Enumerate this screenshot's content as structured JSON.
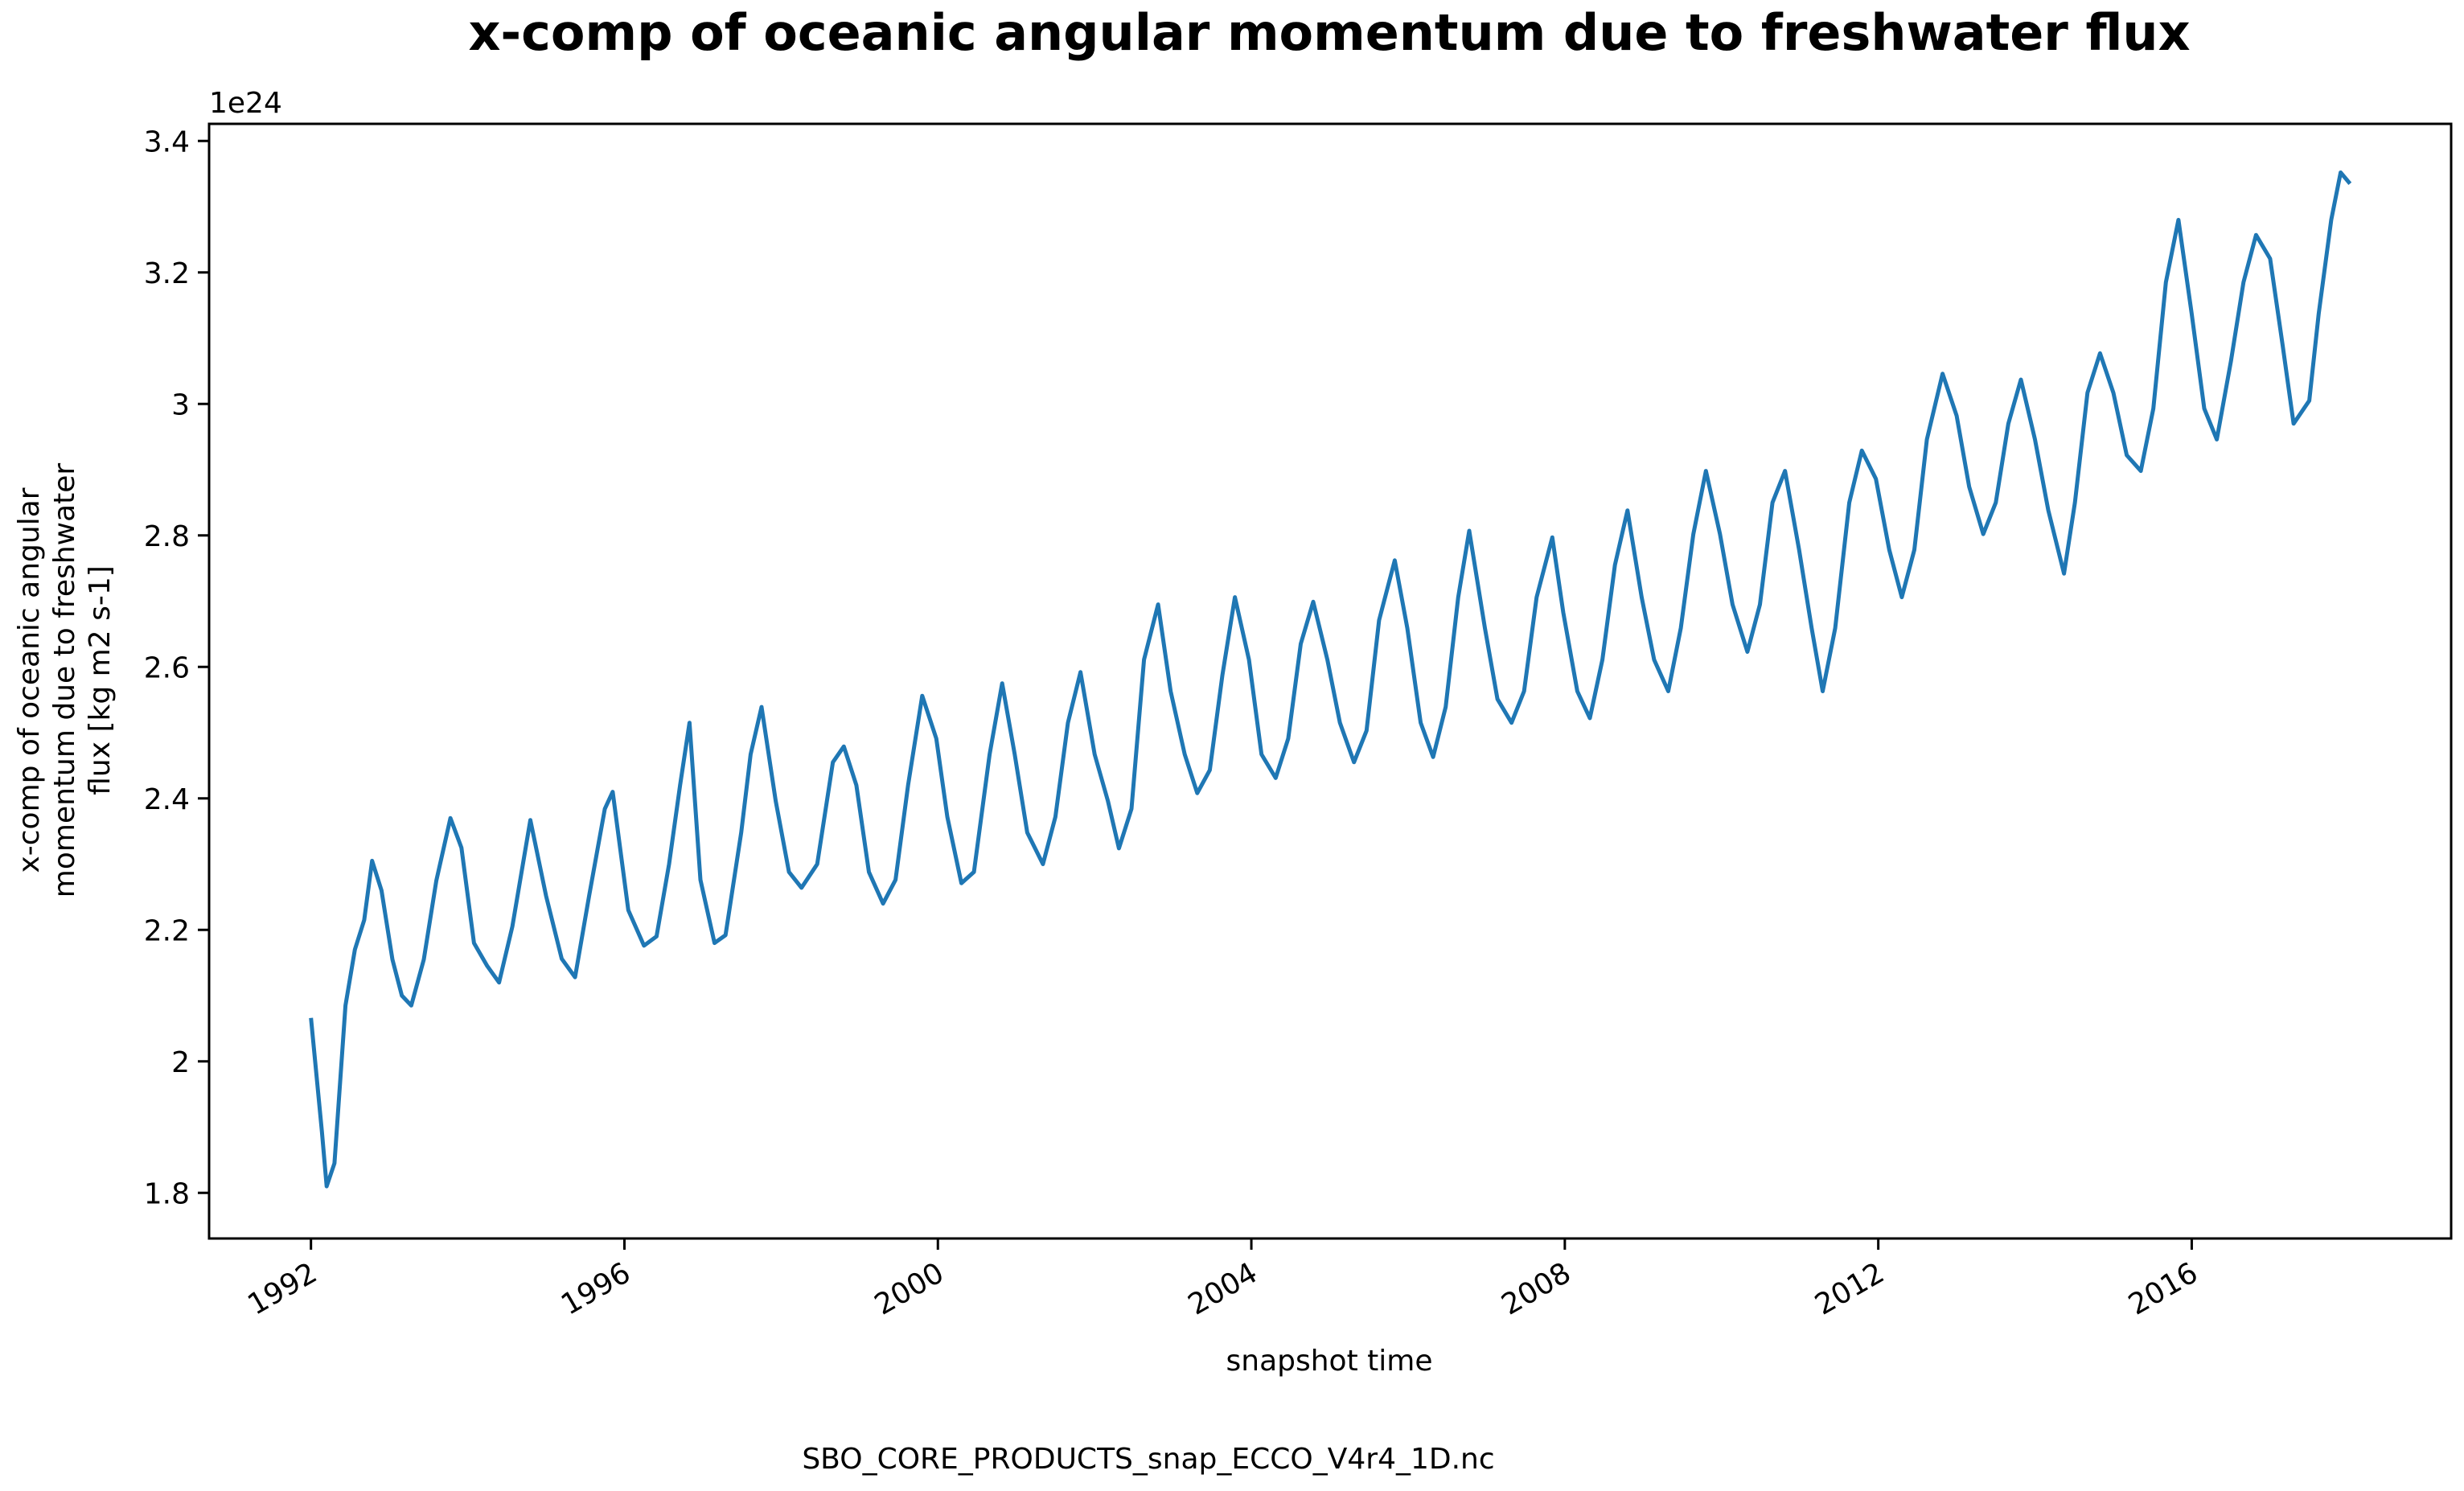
{
  "chart_data": {
    "type": "line",
    "title": "x-comp of oceanic angular momentum due to freshwater flux",
    "xlabel": "snapshot time",
    "ylabel": [
      "x-comp of oceanic angular",
      "momentum due to freshwater",
      "flux [kg m2 s-1]"
    ],
    "y_offset_label": "1e24",
    "footnote": "SBO_CORE_PRODUCTS_snap_ECCO_V4r4_1D.nc",
    "color": "#1f77b4",
    "x": [
      1992.0,
      1992.14,
      1992.2,
      1992.3,
      1992.44,
      1992.56,
      1992.68,
      1992.78,
      1992.9,
      1993.04,
      1993.16,
      1993.28,
      1993.44,
      1993.6,
      1993.78,
      1993.92,
      1994.08,
      1994.25,
      1994.4,
      1994.57,
      1994.8,
      1995.0,
      1995.2,
      1995.37,
      1995.55,
      1995.75,
      1995.85,
      1996.05,
      1996.25,
      1996.41,
      1996.57,
      1996.71,
      1996.83,
      1996.97,
      1997.15,
      1997.29,
      1997.49,
      1997.61,
      1997.75,
      1997.93,
      1998.1,
      1998.26,
      1998.46,
      1998.66,
      1998.8,
      1998.96,
      1999.12,
      1999.3,
      1999.46,
      1999.62,
      1999.8,
      1999.98,
      2000.12,
      2000.3,
      2000.46,
      2000.66,
      2000.82,
      2000.98,
      2001.14,
      2001.34,
      2001.5,
      2001.66,
      2001.82,
      2002.0,
      2002.17,
      2002.31,
      2002.47,
      2002.63,
      2002.81,
      2002.97,
      2003.15,
      2003.31,
      2003.47,
      2003.63,
      2003.79,
      2003.97,
      2004.13,
      2004.31,
      2004.47,
      2004.63,
      2004.79,
      2004.97,
      2005.13,
      2005.31,
      2005.47,
      2005.63,
      2005.83,
      2005.99,
      2006.16,
      2006.32,
      2006.48,
      2006.64,
      2006.78,
      2006.98,
      2007.14,
      2007.32,
      2007.48,
      2007.64,
      2007.84,
      2007.98,
      2008.16,
      2008.32,
      2008.48,
      2008.64,
      2008.8,
      2008.98,
      2009.14,
      2009.32,
      2009.48,
      2009.64,
      2009.8,
      2009.98,
      2010.14,
      2010.33,
      2010.49,
      2010.65,
      2010.81,
      2010.99,
      2011.15,
      2011.29,
      2011.45,
      2011.63,
      2011.79,
      2011.97,
      2012.14,
      2012.3,
      2012.46,
      2012.62,
      2012.82,
      2013.0,
      2013.16,
      2013.34,
      2013.5,
      2013.66,
      2013.82,
      2014.0,
      2014.17,
      2014.37,
      2014.51,
      2014.67,
      2014.83,
      2015.0,
      2015.17,
      2015.35,
      2015.51,
      2015.67,
      2015.83,
      2016.0,
      2016.16,
      2016.32,
      2016.5,
      2016.66,
      2016.82,
      2017.0,
      2017.16,
      2017.3,
      2017.5,
      2017.62,
      2017.78,
      2017.9,
      2018.02
    ],
    "values": [
      2.066,
      1.893,
      1.81,
      1.845,
      2.085,
      2.17,
      2.215,
      2.305,
      2.26,
      2.155,
      2.1,
      2.085,
      2.155,
      2.275,
      2.37,
      2.325,
      2.18,
      2.145,
      2.12,
      2.205,
      2.367,
      2.252,
      2.156,
      2.128,
      2.252,
      2.384,
      2.41,
      2.23,
      2.176,
      2.19,
      2.3,
      2.42,
      2.515,
      2.276,
      2.18,
      2.192,
      2.348,
      2.467,
      2.539,
      2.396,
      2.288,
      2.264,
      2.3,
      2.455,
      2.479,
      2.42,
      2.288,
      2.24,
      2.276,
      2.42,
      2.556,
      2.491,
      2.372,
      2.271,
      2.288,
      2.467,
      2.575,
      2.467,
      2.348,
      2.3,
      2.372,
      2.515,
      2.592,
      2.467,
      2.396,
      2.324,
      2.384,
      2.611,
      2.695,
      2.563,
      2.467,
      2.408,
      2.443,
      2.587,
      2.706,
      2.611,
      2.467,
      2.431,
      2.491,
      2.635,
      2.699,
      2.611,
      2.515,
      2.455,
      2.503,
      2.671,
      2.762,
      2.659,
      2.515,
      2.463,
      2.539,
      2.706,
      2.807,
      2.659,
      2.551,
      2.515,
      2.563,
      2.706,
      2.797,
      2.683,
      2.563,
      2.522,
      2.611,
      2.755,
      2.838,
      2.706,
      2.611,
      2.563,
      2.659,
      2.802,
      2.898,
      2.802,
      2.695,
      2.623,
      2.695,
      2.85,
      2.898,
      2.778,
      2.659,
      2.563,
      2.659,
      2.85,
      2.929,
      2.886,
      2.778,
      2.706,
      2.778,
      2.946,
      3.046,
      2.982,
      2.874,
      2.802,
      2.85,
      2.97,
      3.037,
      2.946,
      2.838,
      2.742,
      2.85,
      3.017,
      3.077,
      3.017,
      2.922,
      2.898,
      2.993,
      3.185,
      3.28,
      3.137,
      2.993,
      2.946,
      3.065,
      3.185,
      3.257,
      3.221,
      3.089,
      2.97,
      3.005,
      3.137,
      3.28,
      3.352,
      3.335
    ],
    "xlim": [
      1990.7,
      2019.31
    ],
    "ylim": [
      1.7306,
      3.426
    ],
    "xticks": [
      1992,
      1996,
      2000,
      2004,
      2008,
      2012,
      2016
    ],
    "yticks": [
      1.8,
      2.0,
      2.2,
      2.4,
      2.6,
      2.8,
      3.0,
      3.2,
      3.4
    ]
  }
}
